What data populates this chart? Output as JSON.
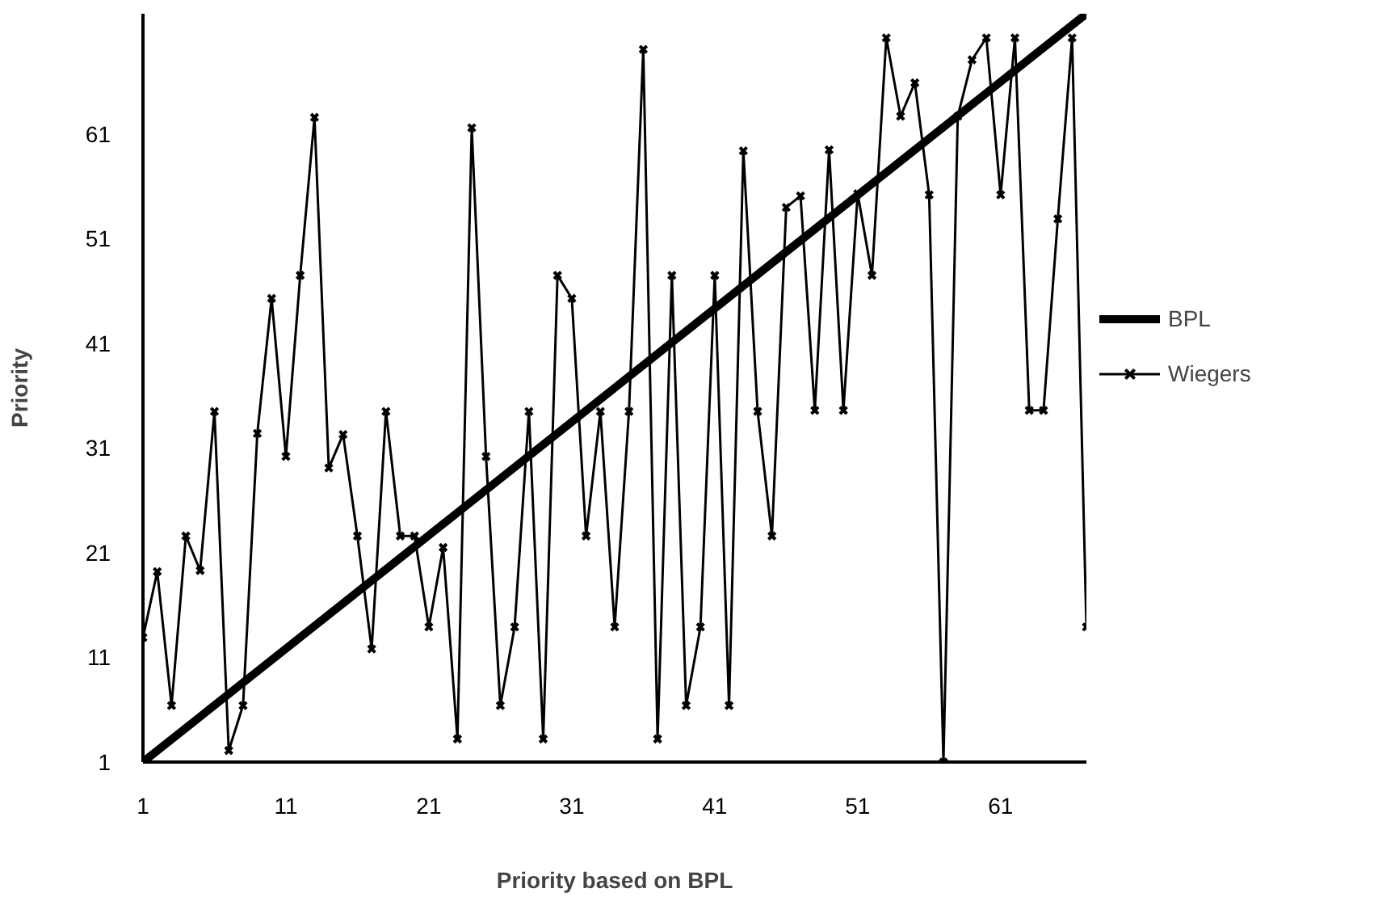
{
  "chart_data": {
    "type": "line",
    "xlabel": "Priority based on BPL",
    "ylabel": "Priority",
    "xlim": [
      1,
      67
    ],
    "ylim": [
      1,
      72.5
    ],
    "xticks": [
      1,
      11,
      21,
      31,
      41,
      51,
      61
    ],
    "yticks": [
      1,
      11,
      21,
      31,
      41,
      51,
      61
    ],
    "grid": false,
    "legend": "right",
    "series": [
      {
        "name": "BPL",
        "color": "#000000",
        "x": [
          1,
          67
        ],
        "values": [
          1,
          72.5
        ],
        "marker": "none"
      },
      {
        "name": "Wiegers",
        "color": "#000000",
        "x": [
          1,
          2,
          3,
          4,
          5,
          6,
          7,
          8,
          9,
          10,
          11,
          12,
          13,
          14,
          15,
          16,
          17,
          18,
          19,
          20,
          21,
          22,
          23,
          24,
          25,
          26,
          27,
          28,
          29,
          30,
          31,
          32,
          33,
          34,
          35,
          36,
          37,
          38,
          39,
          40,
          41,
          42,
          43,
          44,
          45,
          46,
          47,
          48,
          49,
          50,
          51,
          52,
          53,
          54,
          55,
          56,
          57,
          58,
          59,
          60,
          61,
          62,
          63,
          64,
          65,
          66,
          67
        ],
        "values": [
          12.9,
          19.2,
          6.4,
          22.6,
          19.3,
          34.5,
          2.1,
          6.4,
          32.4,
          45.3,
          30.2,
          47.5,
          62.6,
          29.1,
          32.3,
          22.6,
          11.8,
          34.5,
          22.6,
          22.6,
          13.9,
          21.5,
          3.2,
          61.6,
          30.2,
          6.4,
          13.9,
          34.5,
          3.2,
          47.5,
          45.3,
          22.6,
          34.5,
          13.9,
          34.5,
          69.1,
          3.2,
          47.5,
          6.4,
          13.9,
          47.5,
          6.4,
          59.4,
          34.5,
          22.6,
          54.0,
          55.1,
          34.6,
          59.5,
          34.6,
          55.3,
          47.5,
          70.2,
          62.7,
          65.9,
          55.2,
          1.0,
          62.7,
          68.1,
          70.2,
          55.2,
          70.2,
          34.6,
          34.6,
          52.9,
          70.2,
          13.9
        ],
        "marker": "cross"
      }
    ]
  }
}
